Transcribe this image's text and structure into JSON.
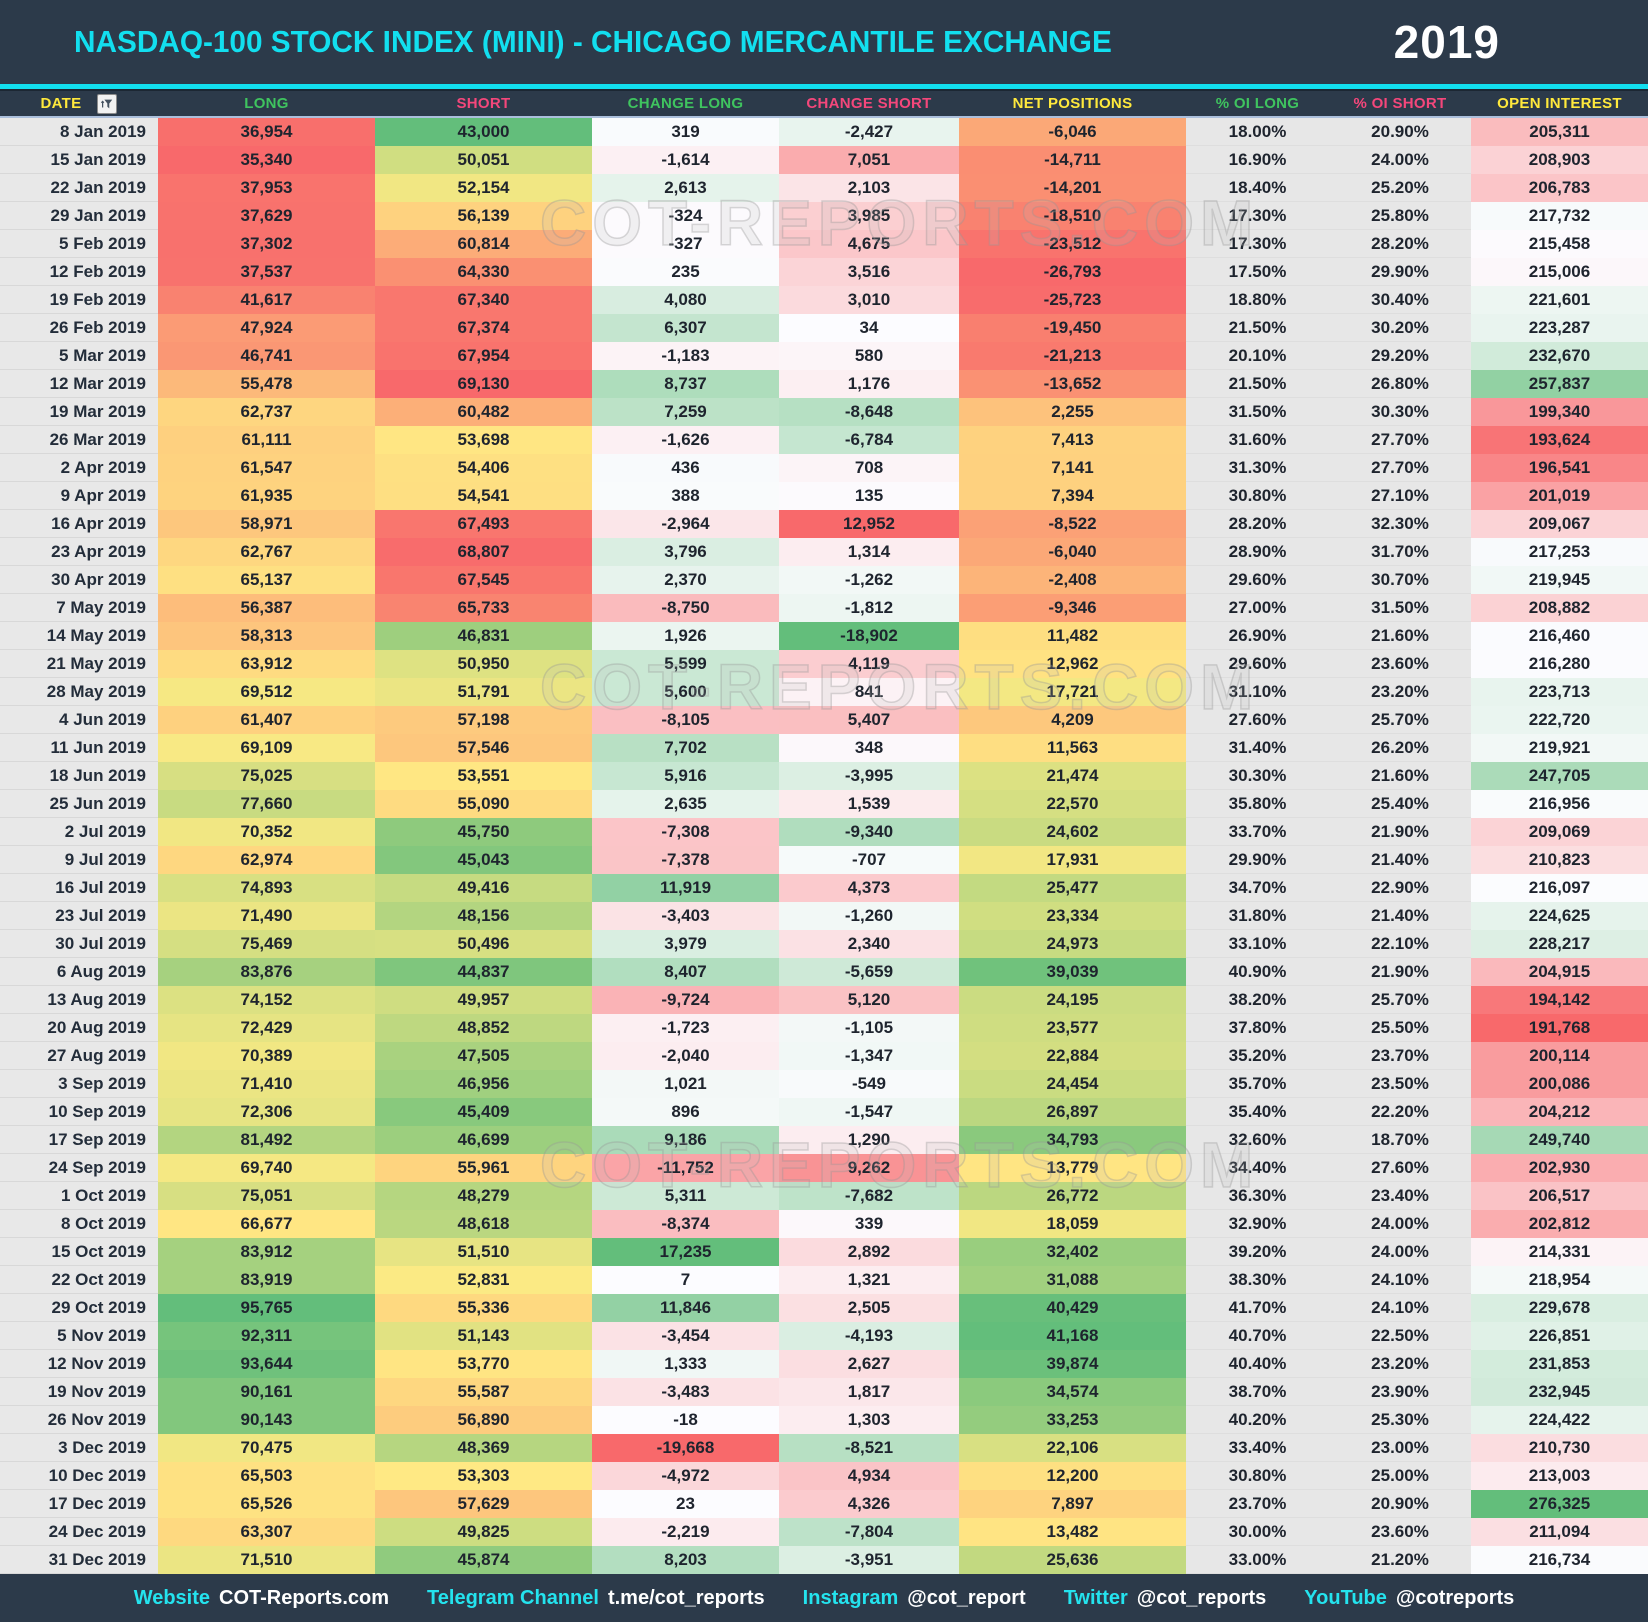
{
  "title_bar": {
    "title": "NASDAQ-100 STOCK INDEX (MINI) - CHICAGO MERCANTILE EXCHANGE",
    "year": "2019"
  },
  "colors": {
    "header_bg": "#2C3A4A",
    "accent_cyan": "#12DFEF",
    "header_yellow": "#FFE93C",
    "header_green": "#3FC45F",
    "header_pink": "#F4477B",
    "heat_red": "#F8696B",
    "heat_yellow": "#FFEB84",
    "heat_green": "#63BE7B",
    "heat_white": "#FCFCFF"
  },
  "watermark": {
    "text": "COT-REPORTS.COM"
  },
  "table": {
    "columns": [
      {
        "key": "date",
        "label": "DATE",
        "color": "#FFE93C",
        "heat": "none"
      },
      {
        "key": "long",
        "label": "LONG",
        "color": "#3FC45F",
        "heat": "ryg"
      },
      {
        "key": "short",
        "label": "SHORT",
        "color": "#F4477B",
        "heat": "ryg_inv"
      },
      {
        "key": "change-long",
        "label": "CHANGE LONG",
        "color": "#3FC45F",
        "heat": "div_pos_green"
      },
      {
        "key": "change-short",
        "label": "CHANGE SHORT",
        "color": "#F4477B",
        "heat": "div_pos_red"
      },
      {
        "key": "net-positions",
        "label": "NET POSITIONS",
        "color": "#FFE93C",
        "heat": "ryg"
      },
      {
        "key": "oi-long-pct",
        "label": "% OI LONG",
        "color": "#3FC45F",
        "heat": "flat"
      },
      {
        "key": "oi-short-pct",
        "label": "% OI SHORT",
        "color": "#F4477B",
        "heat": "flat"
      },
      {
        "key": "open-interest",
        "label": "OPEN INTEREST",
        "color": "#FFE93C",
        "heat": "rwg"
      }
    ],
    "rows": [
      [
        "8 Jan 2019",
        "36,954",
        "43,000",
        "319",
        "-2,427",
        "-6,046",
        "18.00%",
        "20.90%",
        "205,311"
      ],
      [
        "15 Jan 2019",
        "35,340",
        "50,051",
        "-1,614",
        "7,051",
        "-14,711",
        "16.90%",
        "24.00%",
        "208,903"
      ],
      [
        "22 Jan 2019",
        "37,953",
        "52,154",
        "2,613",
        "2,103",
        "-14,201",
        "18.40%",
        "25.20%",
        "206,783"
      ],
      [
        "29 Jan 2019",
        "37,629",
        "56,139",
        "-324",
        "3,985",
        "-18,510",
        "17.30%",
        "25.80%",
        "217,732"
      ],
      [
        "5 Feb 2019",
        "37,302",
        "60,814",
        "-327",
        "4,675",
        "-23,512",
        "17.30%",
        "28.20%",
        "215,458"
      ],
      [
        "12 Feb 2019",
        "37,537",
        "64,330",
        "235",
        "3,516",
        "-26,793",
        "17.50%",
        "29.90%",
        "215,006"
      ],
      [
        "19 Feb 2019",
        "41,617",
        "67,340",
        "4,080",
        "3,010",
        "-25,723",
        "18.80%",
        "30.40%",
        "221,601"
      ],
      [
        "26 Feb 2019",
        "47,924",
        "67,374",
        "6,307",
        "34",
        "-19,450",
        "21.50%",
        "30.20%",
        "223,287"
      ],
      [
        "5 Mar 2019",
        "46,741",
        "67,954",
        "-1,183",
        "580",
        "-21,213",
        "20.10%",
        "29.20%",
        "232,670"
      ],
      [
        "12 Mar 2019",
        "55,478",
        "69,130",
        "8,737",
        "1,176",
        "-13,652",
        "21.50%",
        "26.80%",
        "257,837"
      ],
      [
        "19 Mar 2019",
        "62,737",
        "60,482",
        "7,259",
        "-8,648",
        "2,255",
        "31.50%",
        "30.30%",
        "199,340"
      ],
      [
        "26 Mar 2019",
        "61,111",
        "53,698",
        "-1,626",
        "-6,784",
        "7,413",
        "31.60%",
        "27.70%",
        "193,624"
      ],
      [
        "2 Apr 2019",
        "61,547",
        "54,406",
        "436",
        "708",
        "7,141",
        "31.30%",
        "27.70%",
        "196,541"
      ],
      [
        "9 Apr 2019",
        "61,935",
        "54,541",
        "388",
        "135",
        "7,394",
        "30.80%",
        "27.10%",
        "201,019"
      ],
      [
        "16 Apr 2019",
        "58,971",
        "67,493",
        "-2,964",
        "12,952",
        "-8,522",
        "28.20%",
        "32.30%",
        "209,067"
      ],
      [
        "23 Apr 2019",
        "62,767",
        "68,807",
        "3,796",
        "1,314",
        "-6,040",
        "28.90%",
        "31.70%",
        "217,253"
      ],
      [
        "30 Apr 2019",
        "65,137",
        "67,545",
        "2,370",
        "-1,262",
        "-2,408",
        "29.60%",
        "30.70%",
        "219,945"
      ],
      [
        "7 May 2019",
        "56,387",
        "65,733",
        "-8,750",
        "-1,812",
        "-9,346",
        "27.00%",
        "31.50%",
        "208,882"
      ],
      [
        "14 May 2019",
        "58,313",
        "46,831",
        "1,926",
        "-18,902",
        "11,482",
        "26.90%",
        "21.60%",
        "216,460"
      ],
      [
        "21 May 2019",
        "63,912",
        "50,950",
        "5,599",
        "4,119",
        "12,962",
        "29.60%",
        "23.60%",
        "216,280"
      ],
      [
        "28 May 2019",
        "69,512",
        "51,791",
        "5,600",
        "841",
        "17,721",
        "31.10%",
        "23.20%",
        "223,713"
      ],
      [
        "4 Jun 2019",
        "61,407",
        "57,198",
        "-8,105",
        "5,407",
        "4,209",
        "27.60%",
        "25.70%",
        "222,720"
      ],
      [
        "11 Jun 2019",
        "69,109",
        "57,546",
        "7,702",
        "348",
        "11,563",
        "31.40%",
        "26.20%",
        "219,921"
      ],
      [
        "18 Jun 2019",
        "75,025",
        "53,551",
        "5,916",
        "-3,995",
        "21,474",
        "30.30%",
        "21.60%",
        "247,705"
      ],
      [
        "25 Jun 2019",
        "77,660",
        "55,090",
        "2,635",
        "1,539",
        "22,570",
        "35.80%",
        "25.40%",
        "216,956"
      ],
      [
        "2 Jul 2019",
        "70,352",
        "45,750",
        "-7,308",
        "-9,340",
        "24,602",
        "33.70%",
        "21.90%",
        "209,069"
      ],
      [
        "9 Jul 2019",
        "62,974",
        "45,043",
        "-7,378",
        "-707",
        "17,931",
        "29.90%",
        "21.40%",
        "210,823"
      ],
      [
        "16 Jul 2019",
        "74,893",
        "49,416",
        "11,919",
        "4,373",
        "25,477",
        "34.70%",
        "22.90%",
        "216,097"
      ],
      [
        "23 Jul 2019",
        "71,490",
        "48,156",
        "-3,403",
        "-1,260",
        "23,334",
        "31.80%",
        "21.40%",
        "224,625"
      ],
      [
        "30 Jul 2019",
        "75,469",
        "50,496",
        "3,979",
        "2,340",
        "24,973",
        "33.10%",
        "22.10%",
        "228,217"
      ],
      [
        "6 Aug 2019",
        "83,876",
        "44,837",
        "8,407",
        "-5,659",
        "39,039",
        "40.90%",
        "21.90%",
        "204,915"
      ],
      [
        "13 Aug 2019",
        "74,152",
        "49,957",
        "-9,724",
        "5,120",
        "24,195",
        "38.20%",
        "25.70%",
        "194,142"
      ],
      [
        "20 Aug 2019",
        "72,429",
        "48,852",
        "-1,723",
        "-1,105",
        "23,577",
        "37.80%",
        "25.50%",
        "191,768"
      ],
      [
        "27 Aug 2019",
        "70,389",
        "47,505",
        "-2,040",
        "-1,347",
        "22,884",
        "35.20%",
        "23.70%",
        "200,114"
      ],
      [
        "3 Sep 2019",
        "71,410",
        "46,956",
        "1,021",
        "-549",
        "24,454",
        "35.70%",
        "23.50%",
        "200,086"
      ],
      [
        "10 Sep 2019",
        "72,306",
        "45,409",
        "896",
        "-1,547",
        "26,897",
        "35.40%",
        "22.20%",
        "204,212"
      ],
      [
        "17 Sep 2019",
        "81,492",
        "46,699",
        "9,186",
        "1,290",
        "34,793",
        "32.60%",
        "18.70%",
        "249,740"
      ],
      [
        "24 Sep 2019",
        "69,740",
        "55,961",
        "-11,752",
        "9,262",
        "13,779",
        "34.40%",
        "27.60%",
        "202,930"
      ],
      [
        "1 Oct 2019",
        "75,051",
        "48,279",
        "5,311",
        "-7,682",
        "26,772",
        "36.30%",
        "23.40%",
        "206,517"
      ],
      [
        "8 Oct 2019",
        "66,677",
        "48,618",
        "-8,374",
        "339",
        "18,059",
        "32.90%",
        "24.00%",
        "202,812"
      ],
      [
        "15 Oct 2019",
        "83,912",
        "51,510",
        "17,235",
        "2,892",
        "32,402",
        "39.20%",
        "24.00%",
        "214,331"
      ],
      [
        "22 Oct 2019",
        "83,919",
        "52,831",
        "7",
        "1,321",
        "31,088",
        "38.30%",
        "24.10%",
        "218,954"
      ],
      [
        "29 Oct 2019",
        "95,765",
        "55,336",
        "11,846",
        "2,505",
        "40,429",
        "41.70%",
        "24.10%",
        "229,678"
      ],
      [
        "5 Nov 2019",
        "92,311",
        "51,143",
        "-3,454",
        "-4,193",
        "41,168",
        "40.70%",
        "22.50%",
        "226,851"
      ],
      [
        "12 Nov 2019",
        "93,644",
        "53,770",
        "1,333",
        "2,627",
        "39,874",
        "40.40%",
        "23.20%",
        "231,853"
      ],
      [
        "19 Nov 2019",
        "90,161",
        "55,587",
        "-3,483",
        "1,817",
        "34,574",
        "38.70%",
        "23.90%",
        "232,945"
      ],
      [
        "26 Nov 2019",
        "90,143",
        "56,890",
        "-18",
        "1,303",
        "33,253",
        "40.20%",
        "25.30%",
        "224,422"
      ],
      [
        "3 Dec 2019",
        "70,475",
        "48,369",
        "-19,668",
        "-8,521",
        "22,106",
        "33.40%",
        "23.00%",
        "210,730"
      ],
      [
        "10 Dec 2019",
        "65,503",
        "53,303",
        "-4,972",
        "4,934",
        "12,200",
        "30.80%",
        "25.00%",
        "213,003"
      ],
      [
        "17 Dec 2019",
        "65,526",
        "57,629",
        "23",
        "4,326",
        "7,897",
        "23.70%",
        "20.90%",
        "276,325"
      ],
      [
        "24 Dec 2019",
        "63,307",
        "49,825",
        "-2,219",
        "-7,804",
        "13,482",
        "30.00%",
        "23.60%",
        "211,094"
      ],
      [
        "31 Dec 2019",
        "71,510",
        "45,874",
        "8,203",
        "-3,951",
        "25,636",
        "33.00%",
        "21.20%",
        "216,734"
      ]
    ]
  },
  "footer": {
    "links": [
      {
        "label": "Website",
        "value": "COT-Reports.com"
      },
      {
        "label": "Telegram Channel",
        "value": "t.me/cot_reports"
      },
      {
        "label": "Instagram",
        "value": "@cot_report"
      },
      {
        "label": "Twitter",
        "value": "@cot_reports"
      },
      {
        "label": "YouTube",
        "value": "@cotreports"
      }
    ]
  }
}
